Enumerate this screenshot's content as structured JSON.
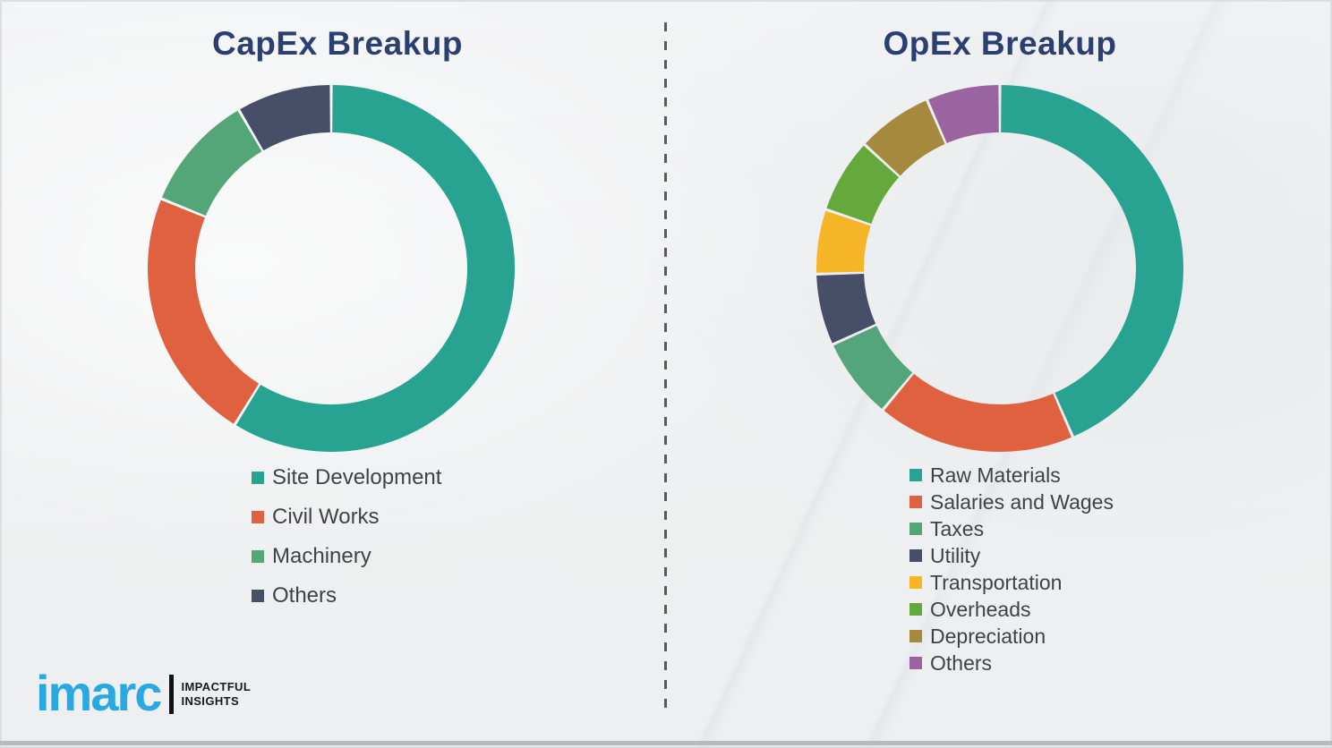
{
  "page": {
    "background_color": "#eff0f1",
    "divider_style": "vertical dashed",
    "divider_color": "#565b60"
  },
  "logo": {
    "brand": "imarc",
    "tagline_line1": "IMPACTFUL",
    "tagline_line2": "INSIGHTS",
    "brand_color": "#29a9e1"
  },
  "chart_data": [
    {
      "type": "pie",
      "subtype": "donut",
      "title": "CapEx Breakup",
      "units": "percent",
      "legend_position": "bottom",
      "series": [
        {
          "label": "Site Development",
          "value": 58.8,
          "color": "#28a392"
        },
        {
          "label": "Civil Works",
          "value": 22.4,
          "color": "#e0613f"
        },
        {
          "label": "Machinery",
          "value": 10.4,
          "color": "#54a577"
        },
        {
          "label": "Others",
          "value": 8.4,
          "color": "#474e68"
        }
      ]
    },
    {
      "type": "pie",
      "subtype": "donut",
      "title": "OpEx Breakup",
      "units": "percent",
      "legend_position": "bottom",
      "series": [
        {
          "label": "Raw Materials",
          "value": 43.5,
          "color": "#28a392"
        },
        {
          "label": "Salaries and Wages",
          "value": 17.5,
          "color": "#e0613f"
        },
        {
          "label": "Taxes",
          "value": 7.2,
          "color": "#55a57c"
        },
        {
          "label": "Utility",
          "value": 6.3,
          "color": "#474e68"
        },
        {
          "label": "Transportation",
          "value": 5.7,
          "color": "#f5b526"
        },
        {
          "label": "Overheads",
          "value": 6.6,
          "color": "#65a93d"
        },
        {
          "label": "Depreciation",
          "value": 6.7,
          "color": "#a5893c"
        },
        {
          "label": "Others",
          "value": 6.5,
          "color": "#9a64a0"
        }
      ]
    }
  ]
}
